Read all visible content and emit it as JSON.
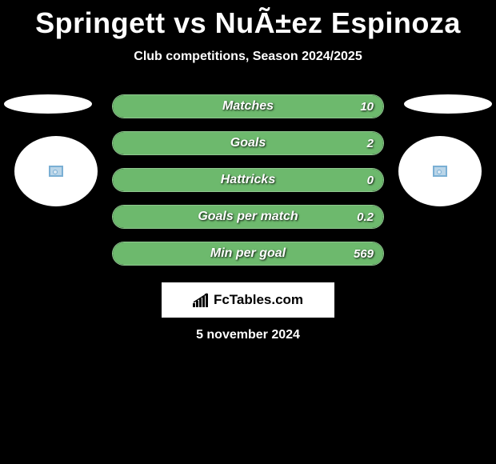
{
  "title": "Springett vs NuÃ±ez Espinoza",
  "subtitle": "Club competitions, Season 2024/2025",
  "brand": "FcTables.com",
  "date": "5 november 2024",
  "colors": {
    "background": "#000000",
    "text": "#ffffff",
    "pill_border": "#8fc78f",
    "fill_green": "#6db96d"
  },
  "stats": [
    {
      "label": "Matches",
      "value": "10",
      "fill_pct": 100,
      "fill_color": "#6db96d"
    },
    {
      "label": "Goals",
      "value": "2",
      "fill_pct": 100,
      "fill_color": "#6db96d"
    },
    {
      "label": "Hattricks",
      "value": "0",
      "fill_pct": 100,
      "fill_color": "#6db96d"
    },
    {
      "label": "Goals per match",
      "value": "0.2",
      "fill_pct": 100,
      "fill_color": "#6db96d"
    },
    {
      "label": "Min per goal",
      "value": "569",
      "fill_pct": 100,
      "fill_color": "#6db96d"
    }
  ]
}
